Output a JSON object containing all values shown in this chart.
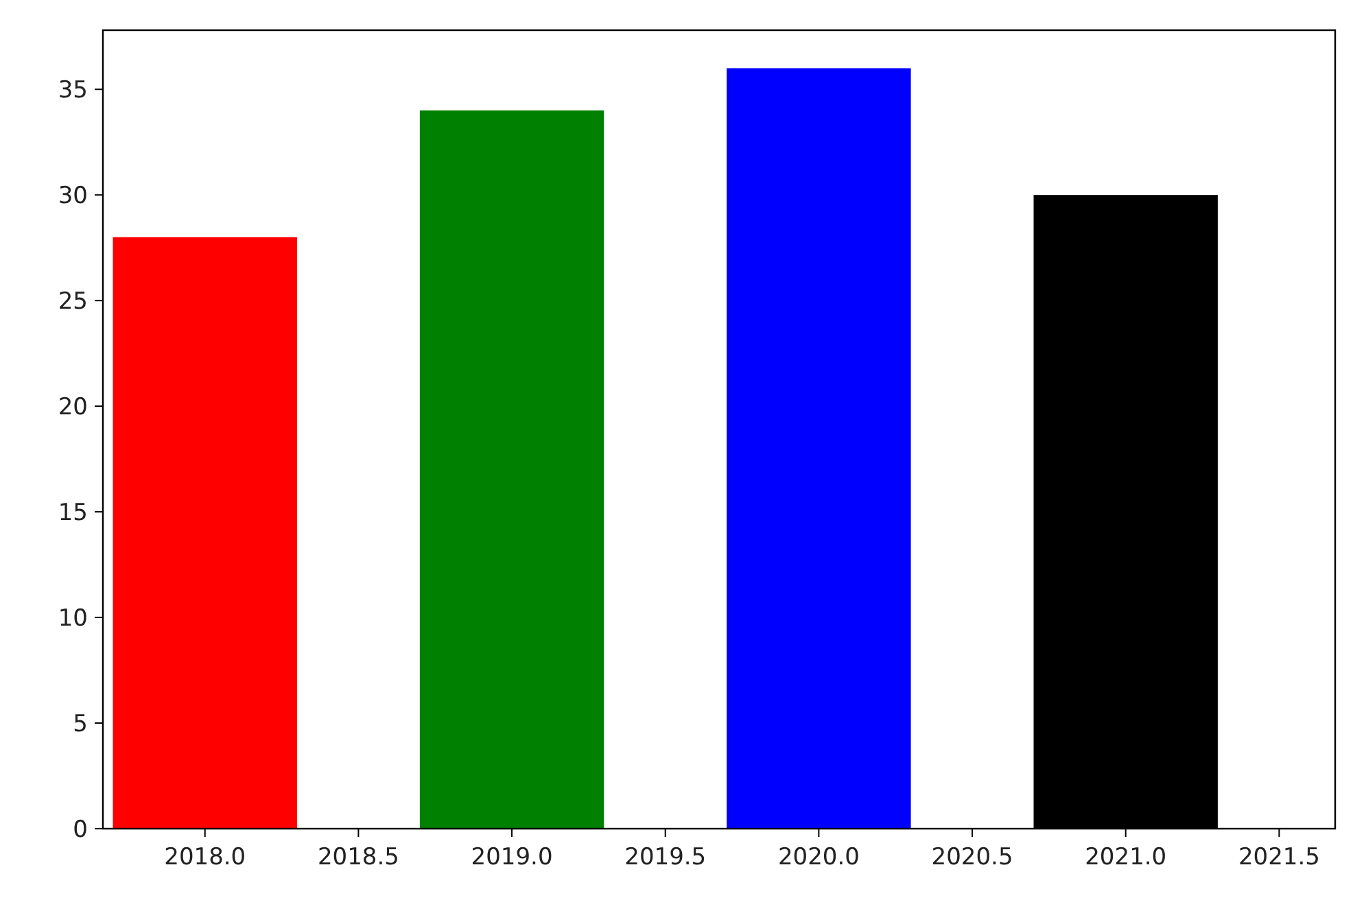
{
  "chart_data": {
    "type": "bar",
    "x": [
      2018,
      2019,
      2020,
      2021
    ],
    "values": [
      28,
      34,
      36,
      30
    ],
    "colors": [
      "#ff0000",
      "#008000",
      "#0000ff",
      "#000000"
    ],
    "xlim": [
      2017.6675,
      2021.6825
    ],
    "xticks": [
      {
        "value": 2018,
        "label": "2018.0"
      },
      {
        "value": 2018.5,
        "label": "2018.5"
      },
      {
        "value": 2019,
        "label": "2019.0"
      },
      {
        "value": 2019.5,
        "label": "2019.5"
      },
      {
        "value": 2020,
        "label": "2020.0"
      },
      {
        "value": 2020.5,
        "label": "2020.5"
      },
      {
        "value": 2021,
        "label": "2021.0"
      },
      {
        "value": 2021.5,
        "label": "2021.5"
      }
    ],
    "ylim": [
      0,
      37.8
    ],
    "yticks": [
      0,
      5,
      10,
      15,
      20,
      25,
      30,
      35
    ],
    "grid": false
  }
}
